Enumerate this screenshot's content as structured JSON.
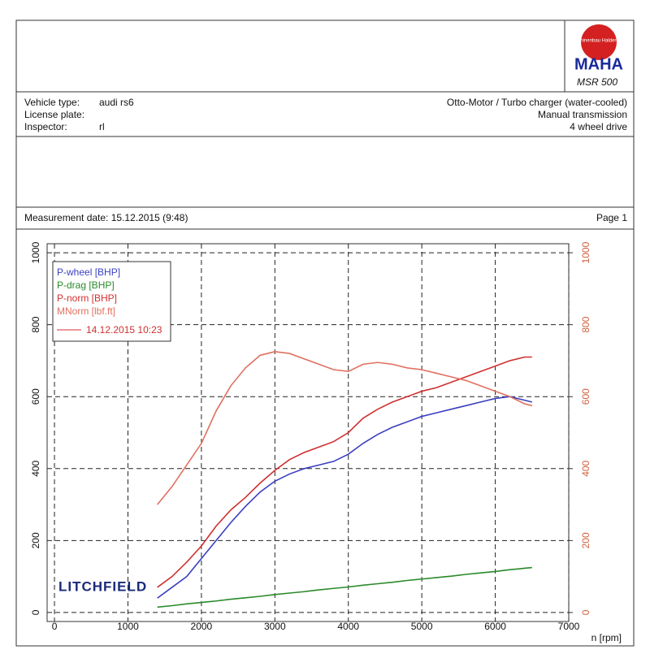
{
  "logo": {
    "ring": "Maschinenbau Haldenwang",
    "brand": "MAHA",
    "model": "MSR 500"
  },
  "info": [
    {
      "label": "Vehicle type:",
      "value": "audi rs6"
    },
    {
      "label": "License plate:"
    },
    {
      "label": "Inspector:",
      "value": "rl"
    }
  ],
  "engine": [
    "Otto-Motor / Turbo charger (water-cooled)",
    "Manual transmission",
    "4 wheel drive"
  ],
  "measurement": {
    "date": "Measurement date: 15.12.2015 (9:48)",
    "page": "Page 1"
  },
  "chart_data": {
    "type": "line",
    "xlabel": "n [rpm]",
    "watermark": "LITCHFIELD",
    "run_label": "14.12.2015 10:23",
    "x": [
      1400,
      1600,
      1800,
      2000,
      2200,
      2400,
      2600,
      2800,
      3000,
      3200,
      3400,
      3600,
      3800,
      4000,
      4200,
      4400,
      4600,
      4800,
      5000,
      5200,
      5400,
      5600,
      5800,
      6000,
      6200,
      6400,
      6500
    ],
    "xlim": [
      -100,
      7000
    ],
    "xticks": [
      0,
      1000,
      2000,
      3000,
      4000,
      5000,
      6000,
      7000
    ],
    "ylim": [
      -25,
      1025
    ],
    "yticks": [
      0,
      200,
      400,
      600,
      800,
      1000
    ],
    "y2lim": [
      -25,
      1025
    ],
    "y2ticks": [
      0,
      200,
      400,
      600,
      800,
      1000
    ],
    "grid": true,
    "series": [
      {
        "name": "P-wheel [BHP]",
        "color": "#3a3fc0",
        "values": [
          40,
          70,
          100,
          150,
          200,
          250,
          295,
          335,
          365,
          385,
          400,
          410,
          420,
          440,
          470,
          495,
          515,
          530,
          545,
          555,
          565,
          575,
          585,
          595,
          600,
          590,
          585
        ]
      },
      {
        "name": "P-drag [BHP]",
        "color": "#2a8a2a",
        "values": [
          15,
          19,
          24,
          28,
          32,
          37,
          41,
          45,
          50,
          54,
          58,
          63,
          67,
          71,
          76,
          80,
          84,
          89,
          93,
          97,
          101,
          106,
          110,
          114,
          119,
          123,
          125
        ]
      },
      {
        "name": "P-norm [BHP]",
        "color": "#d03030",
        "values": [
          70,
          100,
          140,
          185,
          240,
          285,
          320,
          360,
          395,
          425,
          445,
          460,
          475,
          500,
          540,
          565,
          585,
          600,
          615,
          625,
          640,
          655,
          670,
          685,
          700,
          710,
          710
        ]
      },
      {
        "name": "MNorm [lbf.ft]",
        "color": "#e07060",
        "axis": "y2",
        "values": [
          300,
          350,
          410,
          470,
          560,
          630,
          680,
          715,
          725,
          720,
          705,
          690,
          675,
          670,
          690,
          695,
          690,
          680,
          675,
          665,
          655,
          645,
          630,
          615,
          600,
          580,
          575
        ]
      }
    ]
  }
}
